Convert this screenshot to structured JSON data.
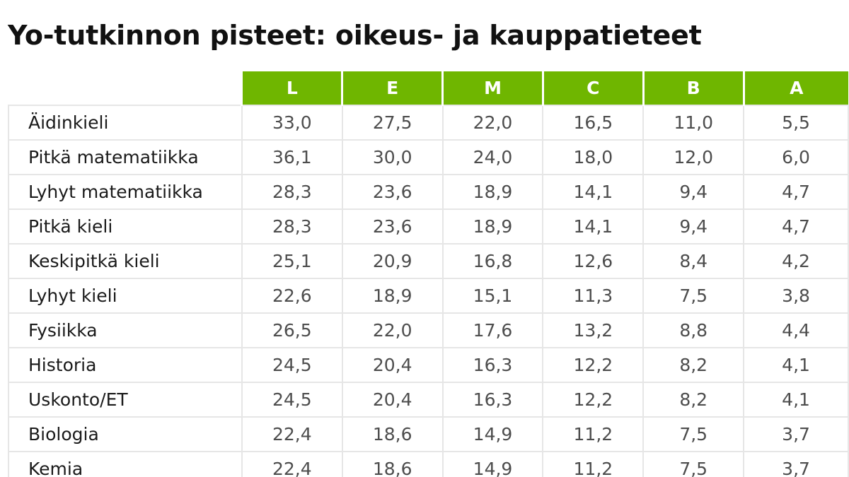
{
  "title": "Yo-tutkinnon pisteet: oikeus- ja kauppatieteet",
  "colors": {
    "header_background": "#6fb600",
    "header_text": "#ffffff",
    "grid_line": "#e6e6e6"
  },
  "table": {
    "columns": [
      "L",
      "E",
      "M",
      "C",
      "B",
      "A"
    ],
    "rows": [
      {
        "subject": "Äidinkieli",
        "values": [
          "33,0",
          "27,5",
          "22,0",
          "16,5",
          "11,0",
          "5,5"
        ]
      },
      {
        "subject": "Pitkä matematiikka",
        "values": [
          "36,1",
          "30,0",
          "24,0",
          "18,0",
          "12,0",
          "6,0"
        ]
      },
      {
        "subject": "Lyhyt matematiikka",
        "values": [
          "28,3",
          "23,6",
          "18,9",
          "14,1",
          "9,4",
          "4,7"
        ]
      },
      {
        "subject": "Pitkä kieli",
        "values": [
          "28,3",
          "23,6",
          "18,9",
          "14,1",
          "9,4",
          "4,7"
        ]
      },
      {
        "subject": "Keskipitkä kieli",
        "values": [
          "25,1",
          "20,9",
          "16,8",
          "12,6",
          "8,4",
          "4,2"
        ]
      },
      {
        "subject": "Lyhyt kieli",
        "values": [
          "22,6",
          "18,9",
          "15,1",
          "11,3",
          "7,5",
          "3,8"
        ]
      },
      {
        "subject": "Fysiikka",
        "values": [
          "26,5",
          "22,0",
          "17,6",
          "13,2",
          "8,8",
          "4,4"
        ]
      },
      {
        "subject": "Historia",
        "values": [
          "24,5",
          "20,4",
          "16,3",
          "12,2",
          "8,2",
          "4,1"
        ]
      },
      {
        "subject": "Uskonto/ET",
        "values": [
          "24,5",
          "20,4",
          "16,3",
          "12,2",
          "8,2",
          "4,1"
        ]
      },
      {
        "subject": "Biologia",
        "values": [
          "22,4",
          "18,6",
          "14,9",
          "11,2",
          "7,5",
          "3,7"
        ]
      },
      {
        "subject": "Kemia",
        "values": [
          "22,4",
          "18,6",
          "14,9",
          "11,2",
          "7,5",
          "3,7"
        ]
      }
    ]
  }
}
